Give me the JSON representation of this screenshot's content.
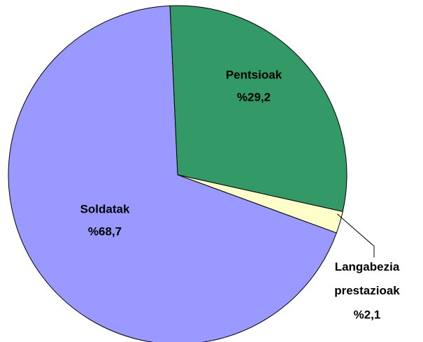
{
  "chart_data": {
    "type": "pie",
    "categories": [
      "Pentsioak",
      "Langabezia prestazioak",
      "Soldatak"
    ],
    "values": [
      29.2,
      2.1,
      68.7
    ],
    "value_labels": [
      "%29,2",
      "%2,1",
      "%68,7"
    ],
    "colors": [
      "#339966",
      "#ffffcc",
      "#9999ff"
    ]
  }
}
